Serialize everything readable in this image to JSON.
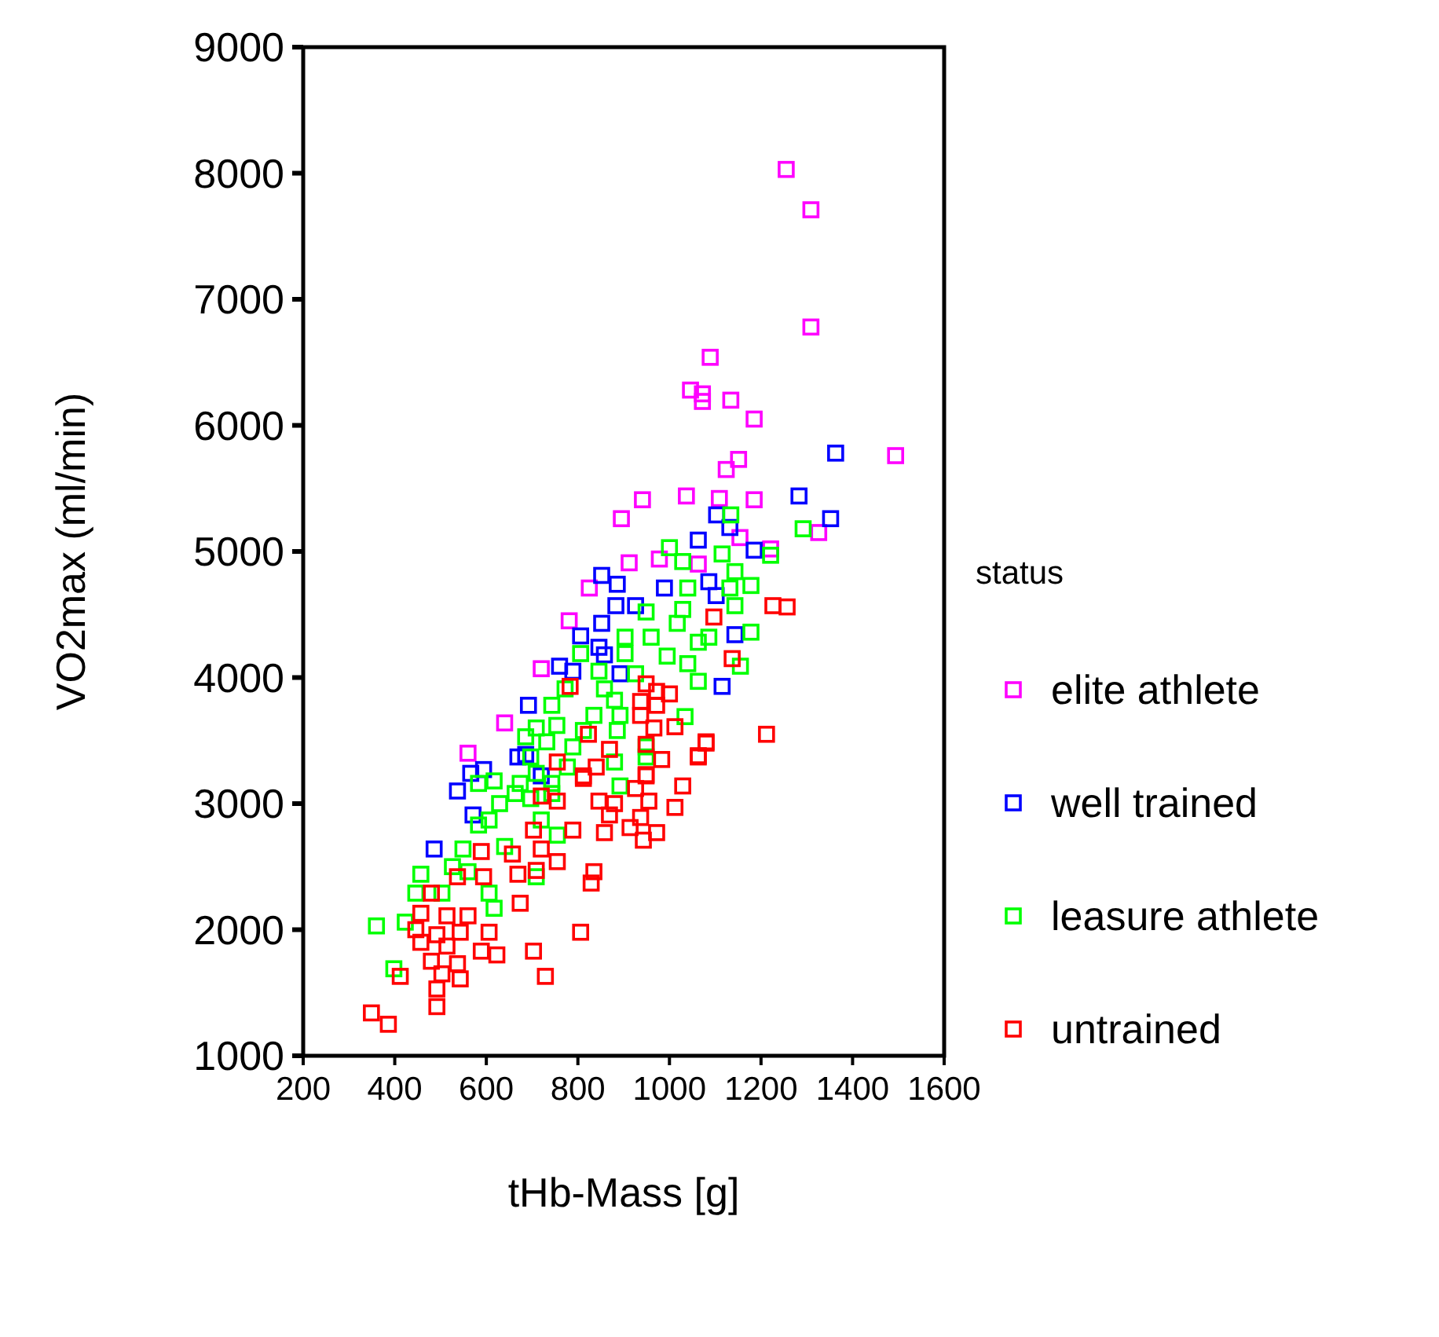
{
  "chart_data": {
    "type": "scatter",
    "xlabel": "tHb-Mass [g]",
    "ylabel": "VO2max (ml/min)",
    "legend_title": "status",
    "legend": "right",
    "marker": "square",
    "grid": false,
    "xlim": [
      200,
      1600
    ],
    "xticks": [
      200,
      400,
      600,
      800,
      1000,
      1200,
      1400,
      1600
    ],
    "ylim": [
      1000,
      9000
    ],
    "yticks": [
      1000,
      2000,
      3000,
      4000,
      5000,
      6000,
      7000,
      8000,
      9000
    ],
    "series": [
      {
        "name": "elite athlete",
        "color": "#ff00ff",
        "x": [
          1255,
          1309,
          1309,
          1089,
          1046,
          1072,
          1072,
          1134,
          1185,
          1151,
          1124,
          1494,
          941,
          1037,
          1109,
          1185,
          895,
          1326,
          912,
          825,
          781,
          720,
          640,
          560,
          1063,
          1154,
          1221,
          978
        ],
        "values": [
          8030,
          7710,
          6780,
          6540,
          6280,
          6250,
          6190,
          6200,
          6050,
          5730,
          5650,
          5760,
          5410,
          5440,
          5420,
          5410,
          5260,
          5150,
          4910,
          4710,
          4450,
          4070,
          3640,
          3400,
          4900,
          5110,
          5020,
          4940
        ]
      },
      {
        "name": "well trained",
        "color": "#0000ff",
        "x": [
          1363,
          1283,
          1352,
          1103,
          1132,
          1063,
          1185,
          852,
          886,
          989,
          1086,
          1102,
          883,
          926,
          852,
          806,
          1143,
          846,
          858,
          760,
          789,
          1115,
          892,
          692,
          566,
          537,
          594,
          669,
          486,
          571,
          686,
          720
        ],
        "values": [
          5780,
          5440,
          5260,
          5290,
          5190,
          5090,
          5010,
          4810,
          4740,
          4710,
          4760,
          4650,
          4570,
          4570,
          4430,
          4330,
          4340,
          4240,
          4180,
          4090,
          4050,
          3930,
          4030,
          3780,
          3240,
          3100,
          3270,
          3370,
          2640,
          2910,
          3390,
          3220
        ]
      },
      {
        "name": "leasure athlete",
        "color": "#00ff00",
        "x": [
          1134,
          1292,
          1000,
          1029,
          1115,
          1221,
          1143,
          1040,
          1132,
          1178,
          949,
          1029,
          1143,
          1178,
          1017,
          903,
          960,
          1063,
          1086,
          806,
          903,
          995,
          1040,
          1155,
          846,
          926,
          1063,
          772,
          858,
          880,
          743,
          835,
          892,
          1034,
          754,
          812,
          886,
          709,
          789,
          949,
          686,
          732,
          697,
          709,
          777,
          880,
          949,
          617,
          674,
          743,
          892,
          583,
          629,
          606,
          663,
          697,
          743,
          720,
          640,
          549,
          526,
          457,
          446,
          503,
          606,
          617,
          709,
          755,
          360,
          423,
          398,
          560,
          583
        ],
        "values": [
          5290,
          5180,
          5030,
          4920,
          4980,
          4970,
          4840,
          4710,
          4710,
          4730,
          4520,
          4540,
          4570,
          4360,
          4430,
          4320,
          4320,
          4280,
          4320,
          4190,
          4190,
          4170,
          4110,
          4090,
          4050,
          4030,
          3970,
          3910,
          3910,
          3820,
          3780,
          3700,
          3700,
          3690,
          3620,
          3580,
          3580,
          3600,
          3450,
          3450,
          3530,
          3490,
          3370,
          3240,
          3290,
          3330,
          3370,
          3180,
          3160,
          3160,
          3140,
          3160,
          3000,
          2870,
          3080,
          3040,
          3080,
          2870,
          2660,
          2640,
          2500,
          2440,
          2290,
          2290,
          2290,
          2170,
          2420,
          2750,
          2030,
          2060,
          1690,
          2460,
          2830
        ]
      },
      {
        "name": "untrained",
        "color": "#ff0000",
        "x": [
          1226,
          1257,
          1097,
          1137,
          783,
          949,
          972,
          1000,
          937,
          972,
          937,
          1212,
          1080,
          1063,
          1012,
          966,
          823,
          869,
          949,
          983,
          755,
          840,
          812,
          949,
          1029,
          926,
          812,
          1080,
          1063,
          949,
          720,
          755,
          846,
          880,
          955,
          1012,
          937,
          869,
          789,
          858,
          914,
          972,
          943,
          703,
          657,
          720,
          755,
          709,
          669,
          835,
          829,
          589,
          594,
          537,
          480,
          674,
          457,
          514,
          560,
          446,
          492,
          543,
          606,
          806,
          457,
          514,
          589,
          623,
          703,
          480,
          537,
          503,
          543,
          729,
          412,
          492,
          492,
          349,
          386
        ],
        "values": [
          4570,
          4560,
          4480,
          4150,
          3930,
          3950,
          3890,
          3870,
          3810,
          3780,
          3700,
          3550,
          3490,
          3380,
          3610,
          3600,
          3550,
          3430,
          3470,
          3350,
          3330,
          3290,
          3220,
          3230,
          3140,
          3120,
          3200,
          3480,
          3370,
          3220,
          3060,
          3020,
          3020,
          3000,
          3020,
          2970,
          2890,
          2910,
          2790,
          2770,
          2810,
          2770,
          2710,
          2790,
          2600,
          2640,
          2540,
          2470,
          2440,
          2460,
          2370,
          2620,
          2420,
          2420,
          2290,
          2210,
          2130,
          2110,
          2110,
          2000,
          1960,
          1980,
          1980,
          1980,
          1900,
          1870,
          1830,
          1800,
          1830,
          1750,
          1730,
          1650,
          1610,
          1630,
          1630,
          1530,
          1390,
          1340,
          1250
        ]
      }
    ]
  }
}
